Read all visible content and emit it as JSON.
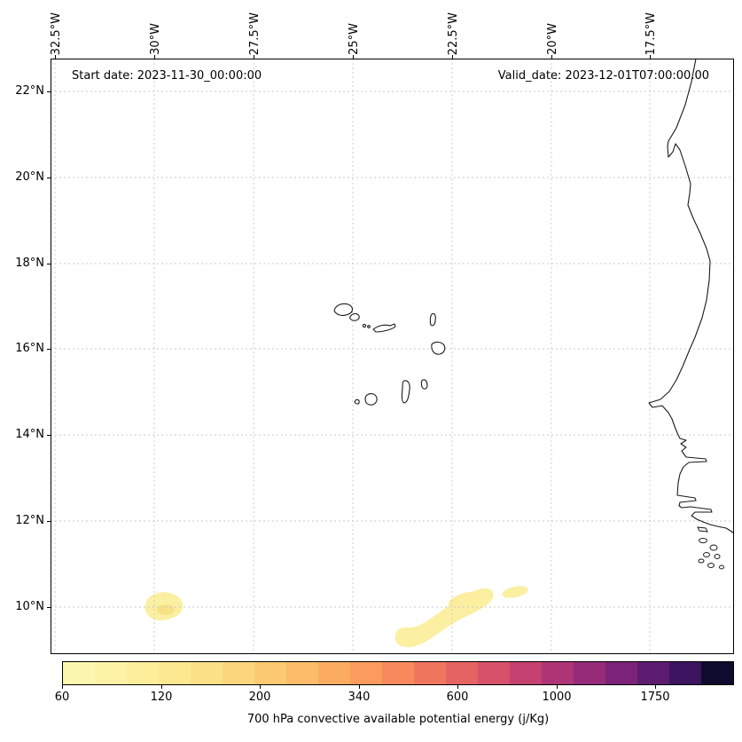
{
  "annotations": {
    "start_date": "Start date: 2023-11-30_00:00:00",
    "valid_date": "Valid_date: 2023-12-01T07:00:00.00"
  },
  "axes": {
    "lon_ticks": [
      "32.5°W",
      "30°W",
      "27.5°W",
      "25°W",
      "22.5°W",
      "20°W",
      "17.5°W"
    ],
    "lat_ticks": [
      "22°N",
      "20°N",
      "18°N",
      "16°N",
      "14°N",
      "12°N",
      "10°N"
    ]
  },
  "colorbar": {
    "label": "700 hPa convective available potential energy (j/Kg)",
    "ticks": [
      "60",
      "120",
      "200",
      "340",
      "600",
      "1000",
      "1750"
    ],
    "colors": [
      "#fcf7b0",
      "#fcf3a6",
      "#fcee9b",
      "#fce890",
      "#fce086",
      "#fcd67c",
      "#fcca72",
      "#fcbc69",
      "#fcac61",
      "#fb9b5d",
      "#f7895c",
      "#f0765e",
      "#e56363",
      "#d65169",
      "#c44170",
      "#ae3576",
      "#952b79",
      "#7b2379",
      "#5e1c71",
      "#3c145f",
      "#0e0b2e"
    ]
  },
  "map": {
    "coastline_color": "#1a1a1a",
    "grid_color": "#c9c9c9",
    "cape_patch_fill": "#fbf0a2",
    "cape_patch_core": "#f7e185"
  },
  "chart_data": {
    "type": "heatmap",
    "title": "700 hPa convective available potential energy (j/Kg)",
    "projection": "lat-lon geographic map (Cape Verde / West African coast)",
    "x_axis": {
      "ticks": [
        "32.5°W",
        "30°W",
        "27.5°W",
        "25°W",
        "22.5°W",
        "20°W",
        "17.5°W"
      ],
      "range": [
        "32.6°W",
        "15.4°W"
      ]
    },
    "y_axis": {
      "ticks": [
        "22°N",
        "20°N",
        "18°N",
        "16°N",
        "14°N",
        "12°N",
        "10°N"
      ],
      "range": [
        "8.9°N",
        "22.8°N"
      ]
    },
    "grid": "dashed",
    "legend_position": "bottom horizontal colorbar",
    "colorbar_tick_values": [
      60,
      120,
      200,
      340,
      600,
      1000,
      1750
    ],
    "annotations": [
      "Start date: 2023-11-30_00:00:00",
      "Valid_date: 2023-12-01T07:00:00.00"
    ],
    "data_regions": [
      {
        "feature": "CAPE patch",
        "approx_center": "29.8°W, 10.0°N",
        "value_jkg": "60-120"
      },
      {
        "feature": "CAPE patch (elongated)",
        "approx_extent": "24°W-21.4°W, 9.1°N-10.5°N",
        "value_jkg": "60-120"
      },
      {
        "feature": "CAPE patch (small)",
        "approx_center": "20.9°W, 10.3°N",
        "value_jkg": "60"
      }
    ],
    "map_features": [
      "Cape Verde archipelago coastlines",
      "West African coastline (Mauritania to Guinea-Bissau)",
      "Bijagos islands"
    ]
  }
}
